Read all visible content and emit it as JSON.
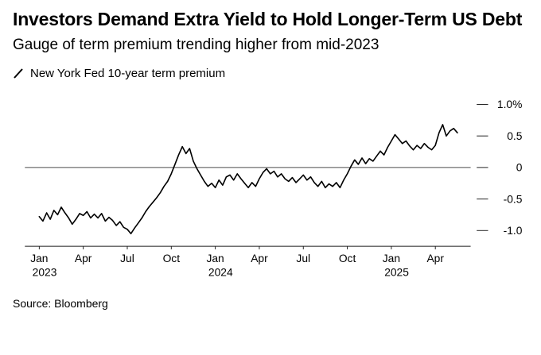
{
  "header": {
    "title": "Investors Demand Extra Yield to Hold Longer-Term US Debt",
    "subtitle": "Gauge of term premium trending higher from mid-2023"
  },
  "legend": {
    "label": "New York Fed 10-year term premium"
  },
  "footer": {
    "source": "Source: Bloomberg"
  },
  "chart_data": {
    "type": "line",
    "title": "Investors Demand Extra Yield to Hold Longer-Term US Debt",
    "subtitle": "Gauge of term premium trending higher from mid-2023",
    "series_name": "New York Fed 10-year term premium",
    "x_unit": "months since Jan 2023",
    "y_unit": "percent",
    "line_color": "#000000",
    "xlim": [
      0,
      29.2
    ],
    "ylim": [
      -1.25,
      1.15
    ],
    "grid": "zero-line-only",
    "legend_position": "top-left",
    "y_axis_side": "right",
    "y_ticks": [
      {
        "value": 1.0,
        "label": "1.0%"
      },
      {
        "value": 0.5,
        "label": "0.5"
      },
      {
        "value": 0.0,
        "label": "0"
      },
      {
        "value": -0.5,
        "label": "-0.5"
      },
      {
        "value": -1.0,
        "label": "-1.0"
      }
    ],
    "x_ticks": [
      {
        "month": 0,
        "label": "Jan",
        "year": "2023"
      },
      {
        "month": 3,
        "label": "Apr"
      },
      {
        "month": 6,
        "label": "Jul"
      },
      {
        "month": 9,
        "label": "Oct"
      },
      {
        "month": 12,
        "label": "Jan",
        "year": "2024"
      },
      {
        "month": 15,
        "label": "Apr"
      },
      {
        "month": 18,
        "label": "Jul"
      },
      {
        "month": 21,
        "label": "Oct"
      },
      {
        "month": 24,
        "label": "Jan",
        "year": "2025"
      },
      {
        "month": 27,
        "label": "Apr"
      }
    ],
    "x": [
      0,
      0.25,
      0.5,
      0.75,
      1,
      1.25,
      1.5,
      1.75,
      2,
      2.25,
      2.5,
      2.75,
      3,
      3.25,
      3.5,
      3.75,
      4,
      4.25,
      4.5,
      4.75,
      5,
      5.25,
      5.5,
      5.75,
      6,
      6.25,
      6.5,
      6.75,
      7,
      7.25,
      7.5,
      7.75,
      8,
      8.25,
      8.5,
      8.75,
      9,
      9.25,
      9.5,
      9.75,
      10,
      10.25,
      10.5,
      10.75,
      11,
      11.25,
      11.5,
      11.75,
      12,
      12.25,
      12.5,
      12.75,
      13,
      13.25,
      13.5,
      13.75,
      14,
      14.25,
      14.5,
      14.75,
      15,
      15.25,
      15.5,
      15.75,
      16,
      16.25,
      16.5,
      16.75,
      17,
      17.25,
      17.5,
      17.75,
      18,
      18.25,
      18.5,
      18.75,
      19,
      19.25,
      19.5,
      19.75,
      20,
      20.25,
      20.5,
      20.75,
      21,
      21.25,
      21.5,
      21.75,
      22,
      22.25,
      22.5,
      22.75,
      23,
      23.25,
      23.5,
      23.75,
      24,
      24.25,
      24.5,
      24.75,
      25,
      25.25,
      25.5,
      25.75,
      26,
      26.25,
      26.5,
      26.75,
      27,
      27.25,
      27.5,
      27.75,
      28,
      28.25,
      28.5
    ],
    "y": [
      -0.78,
      -0.85,
      -0.72,
      -0.82,
      -0.68,
      -0.75,
      -0.63,
      -0.72,
      -0.8,
      -0.9,
      -0.82,
      -0.73,
      -0.76,
      -0.7,
      -0.8,
      -0.74,
      -0.8,
      -0.73,
      -0.85,
      -0.79,
      -0.84,
      -0.92,
      -0.86,
      -0.95,
      -0.98,
      -1.05,
      -0.96,
      -0.88,
      -0.8,
      -0.7,
      -0.62,
      -0.55,
      -0.48,
      -0.4,
      -0.3,
      -0.22,
      -0.1,
      0.05,
      0.2,
      0.33,
      0.22,
      0.3,
      0.1,
      -0.02,
      -0.12,
      -0.22,
      -0.3,
      -0.25,
      -0.32,
      -0.2,
      -0.28,
      -0.15,
      -0.12,
      -0.2,
      -0.1,
      -0.18,
      -0.25,
      -0.32,
      -0.24,
      -0.3,
      -0.18,
      -0.08,
      -0.02,
      -0.1,
      -0.06,
      -0.15,
      -0.1,
      -0.18,
      -0.22,
      -0.16,
      -0.24,
      -0.18,
      -0.12,
      -0.2,
      -0.15,
      -0.24,
      -0.3,
      -0.22,
      -0.32,
      -0.26,
      -0.3,
      -0.24,
      -0.32,
      -0.2,
      -0.1,
      0.02,
      0.12,
      0.05,
      0.15,
      0.06,
      0.14,
      0.1,
      0.18,
      0.26,
      0.2,
      0.32,
      0.42,
      0.52,
      0.45,
      0.38,
      0.42,
      0.34,
      0.28,
      0.35,
      0.3,
      0.38,
      0.32,
      0.28,
      0.35,
      0.55,
      0.68,
      0.5,
      0.58,
      0.62,
      0.55
    ]
  }
}
